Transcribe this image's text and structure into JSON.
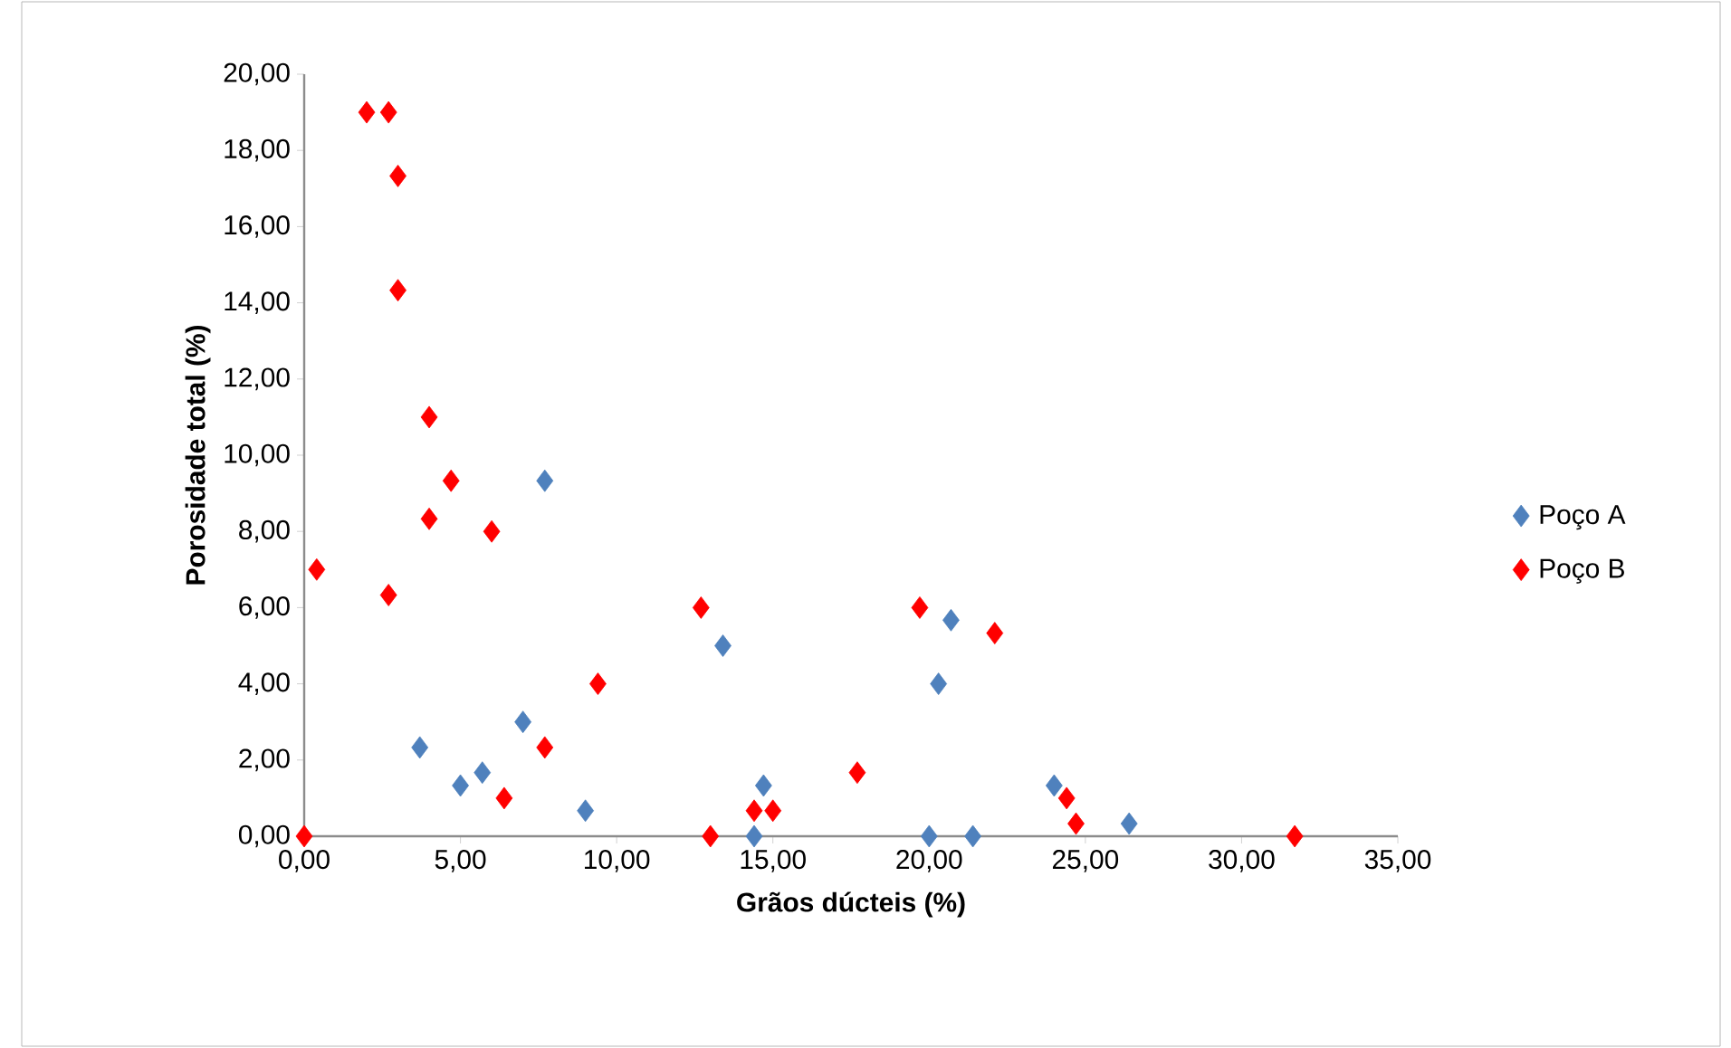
{
  "chart_data": {
    "type": "scatter",
    "xlabel": "Grãos dúcteis (%)",
    "ylabel": "Porosidade total (%)",
    "xlim": [
      0,
      35
    ],
    "ylim": [
      0,
      20
    ],
    "xticks": [
      {
        "value": 0,
        "label": "0,00"
      },
      {
        "value": 5,
        "label": "5,00"
      },
      {
        "value": 10,
        "label": "10,00"
      },
      {
        "value": 15,
        "label": "15,00"
      },
      {
        "value": 20,
        "label": "20,00"
      },
      {
        "value": 25,
        "label": "25,00"
      },
      {
        "value": 30,
        "label": "30,00"
      },
      {
        "value": 35,
        "label": "35,00"
      }
    ],
    "yticks": [
      {
        "value": 0,
        "label": "0,00"
      },
      {
        "value": 2,
        "label": "2,00"
      },
      {
        "value": 4,
        "label": "4,00"
      },
      {
        "value": 6,
        "label": "6,00"
      },
      {
        "value": 8,
        "label": "8,00"
      },
      {
        "value": 10,
        "label": "10,00"
      },
      {
        "value": 12,
        "label": "12,00"
      },
      {
        "value": 14,
        "label": "14,00"
      },
      {
        "value": 16,
        "label": "16,00"
      },
      {
        "value": 18,
        "label": "18,00"
      },
      {
        "value": 20,
        "label": "20,00"
      }
    ],
    "legend": "right",
    "marker": "diamond",
    "grid": false,
    "series": [
      {
        "name": "Poço A",
        "color": "#4f81bd",
        "x": [
          3.7,
          5.0,
          5.7,
          7.0,
          7.7,
          9.0,
          13.4,
          14.7,
          14.4,
          20.7,
          20.3,
          20.0,
          21.4,
          24.0,
          26.4
        ],
        "values": [
          2.33,
          1.33,
          1.67,
          3.0,
          9.33,
          0.67,
          5.0,
          1.33,
          0,
          5.67,
          4.0,
          0,
          0,
          1.33,
          0.33
        ]
      },
      {
        "name": "Poço B",
        "color": "#ff0000",
        "x": [
          0,
          0.4,
          2.0,
          2.7,
          3.0,
          3.0,
          4.0,
          4.7,
          4.0,
          6.0,
          2.7,
          6.4,
          7.7,
          9.4,
          12.7,
          13.0,
          14.4,
          15.0,
          17.7,
          19.7,
          22.1,
          24.4,
          24.7,
          31.7
        ],
        "values": [
          0,
          7.0,
          19.0,
          19.0,
          17.33,
          14.33,
          11.0,
          9.33,
          8.33,
          8.0,
          6.33,
          1.0,
          2.33,
          4.0,
          6.0,
          0,
          0.67,
          0.67,
          1.67,
          6.0,
          5.33,
          1.0,
          0.33,
          0
        ]
      }
    ]
  }
}
